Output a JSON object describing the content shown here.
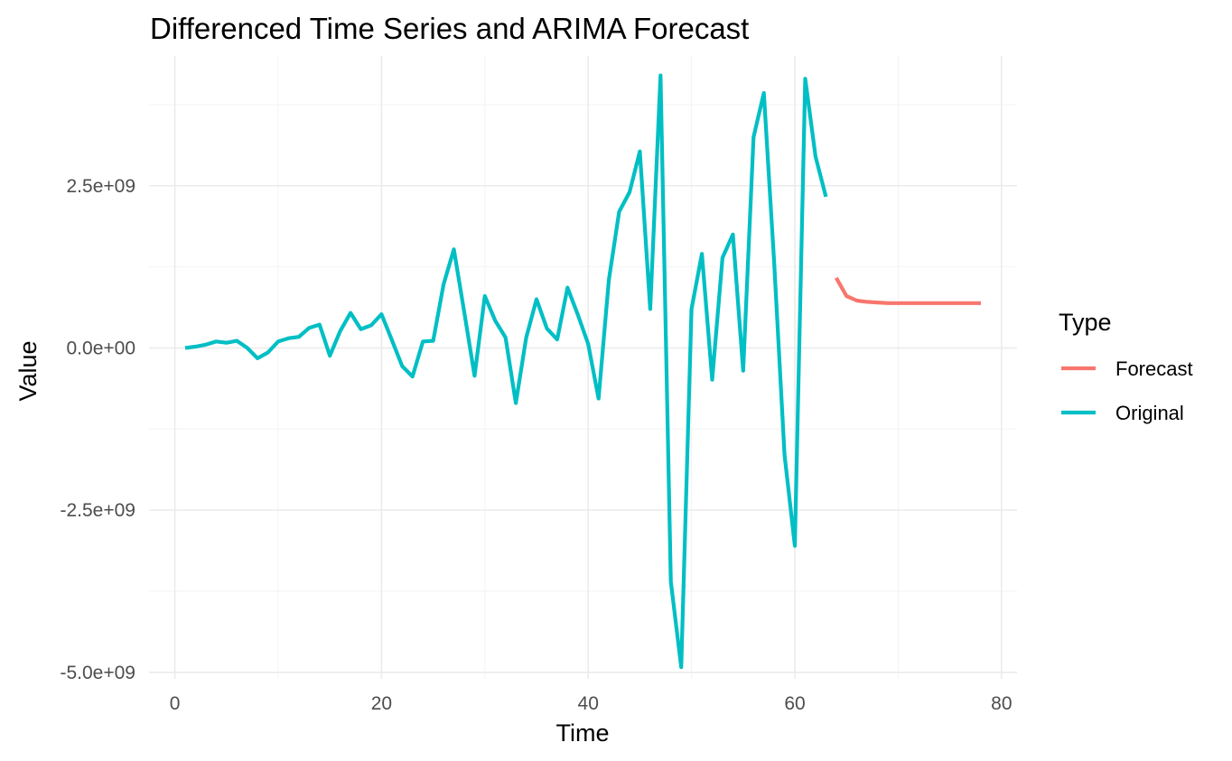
{
  "chart_data": {
    "type": "line",
    "title": "Differenced Time Series and ARIMA Forecast",
    "xlabel": "Time",
    "ylabel": "Value",
    "xlim": [
      -2.5,
      81.5
    ],
    "ylim": [
      -5100000000.0,
      4500000000.0
    ],
    "x_ticks": [
      0,
      20,
      40,
      60,
      80
    ],
    "x_tick_labels": [
      "0",
      "20",
      "40",
      "60",
      "80"
    ],
    "y_ticks": [
      -5000000000.0,
      -2500000000.0,
      0,
      2500000000.0
    ],
    "y_tick_labels": [
      "-5.0e+09",
      "-2.5e+09",
      "0.0e+00",
      "2.5e+09"
    ],
    "grid": true,
    "legend": {
      "title": "Type",
      "position": "right",
      "entries": [
        "Forecast",
        "Original"
      ]
    },
    "series": [
      {
        "name": "Forecast",
        "color": "#F8766D",
        "x": [
          64,
          65,
          66,
          67,
          68,
          69,
          70,
          71,
          72,
          73,
          74,
          75,
          76,
          77,
          78
        ],
        "values": [
          1080000000.0,
          800000000.0,
          730000000.0,
          710000000.0,
          700000000.0,
          690000000.0,
          690000000.0,
          690000000.0,
          690000000.0,
          690000000.0,
          690000000.0,
          690000000.0,
          690000000.0,
          690000000.0,
          690000000.0
        ]
      },
      {
        "name": "Original",
        "color": "#00BFC4",
        "x": [
          1,
          2,
          3,
          4,
          5,
          6,
          7,
          8,
          9,
          10,
          11,
          12,
          13,
          14,
          15,
          16,
          17,
          18,
          19,
          20,
          21,
          22,
          23,
          24,
          25,
          26,
          27,
          28,
          29,
          30,
          31,
          32,
          33,
          34,
          35,
          36,
          37,
          38,
          39,
          40,
          41,
          42,
          43,
          44,
          45,
          46,
          47,
          48,
          49,
          50,
          51,
          52,
          53,
          54,
          55,
          56,
          57,
          58,
          59,
          60,
          61,
          62,
          63
        ],
        "values": [
          0.0,
          20000000.0,
          50000000.0,
          100000000.0,
          80000000.0,
          110000000.0,
          0.0,
          -160000000.0,
          -70000000.0,
          100000000.0,
          150000000.0,
          170000000.0,
          310000000.0,
          360000000.0,
          -120000000.0,
          260000000.0,
          540000000.0,
          290000000.0,
          350000000.0,
          520000000.0,
          120000000.0,
          -280000000.0,
          -440000000.0,
          100000000.0,
          110000000.0,
          980000000.0,
          1520000000.0,
          560000000.0,
          -430000000.0,
          800000000.0,
          420000000.0,
          160000000.0,
          -850000000.0,
          160000000.0,
          750000000.0,
          300000000.0,
          130000000.0,
          930000000.0,
          510000000.0,
          60000000.0,
          -780000000.0,
          1050000000.0,
          2100000000.0,
          2400000000.0,
          3030000000.0,
          600000000.0,
          4200000000.0,
          -3600000000.0,
          -4920000000.0,
          600000000.0,
          1450000000.0,
          -490000000.0,
          1390000000.0,
          1750000000.0,
          -350000000.0,
          3250000000.0,
          3930000000.0,
          1320000000.0,
          -1650000000.0,
          -3050000000.0,
          4150000000.0,
          2950000000.0,
          2330000000.0
        ]
      }
    ]
  }
}
